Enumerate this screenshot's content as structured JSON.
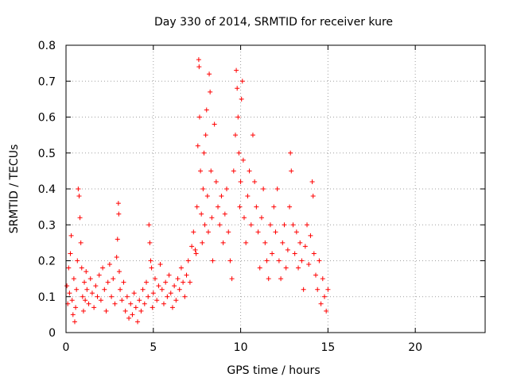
{
  "chart_data": {
    "type": "scatter",
    "title": "Day 330 of 2014, SRMTID for receiver kure",
    "xlabel": "GPS time / hours",
    "ylabel": "SRMTID / TECUs",
    "xlim": [
      0,
      24
    ],
    "ylim": [
      0,
      0.8
    ],
    "xticks": [
      0,
      5,
      10,
      15,
      20
    ],
    "xtick_labels": [
      "0",
      "5",
      "10",
      "15",
      "20"
    ],
    "yticks": [
      0,
      0.1,
      0.2,
      0.3,
      0.4,
      0.5,
      0.6,
      0.7,
      0.8
    ],
    "ytick_labels": [
      "0",
      "0.1",
      "0.2",
      "0.3",
      "0.4",
      "0.5",
      "0.6",
      "0.7",
      "0.8"
    ],
    "grid": true,
    "marker": "plus",
    "color": "#ff0000",
    "series": [
      {
        "name": "SRMTID",
        "points": [
          [
            0.05,
            0.13
          ],
          [
            0.1,
            0.08
          ],
          [
            0.15,
            0.18
          ],
          [
            0.2,
            0.11
          ],
          [
            0.25,
            0.22
          ],
          [
            0.3,
            0.27
          ],
          [
            0.35,
            0.09
          ],
          [
            0.4,
            0.05
          ],
          [
            0.45,
            0.15
          ],
          [
            0.5,
            0.03
          ],
          [
            0.55,
            0.07
          ],
          [
            0.6,
            0.12
          ],
          [
            0.65,
            0.2
          ],
          [
            0.7,
            0.4
          ],
          [
            0.75,
            0.38
          ],
          [
            0.8,
            0.32
          ],
          [
            0.85,
            0.25
          ],
          [
            0.9,
            0.18
          ],
          [
            0.95,
            0.1
          ],
          [
            1.0,
            0.06
          ],
          [
            1.05,
            0.14
          ],
          [
            1.1,
            0.09
          ],
          [
            1.15,
            0.17
          ],
          [
            1.2,
            0.12
          ],
          [
            1.3,
            0.08
          ],
          [
            1.4,
            0.15
          ],
          [
            1.5,
            0.11
          ],
          [
            1.6,
            0.07
          ],
          [
            1.7,
            0.13
          ],
          [
            1.8,
            0.1
          ],
          [
            1.9,
            0.16
          ],
          [
            2.0,
            0.09
          ],
          [
            2.1,
            0.18
          ],
          [
            2.2,
            0.12
          ],
          [
            2.3,
            0.06
          ],
          [
            2.4,
            0.14
          ],
          [
            2.5,
            0.19
          ],
          [
            2.6,
            0.1
          ],
          [
            2.7,
            0.15
          ],
          [
            2.8,
            0.08
          ],
          [
            2.9,
            0.21
          ],
          [
            2.95,
            0.26
          ],
          [
            3.0,
            0.36
          ],
          [
            3.02,
            0.33
          ],
          [
            3.05,
            0.17
          ],
          [
            3.1,
            0.12
          ],
          [
            3.2,
            0.09
          ],
          [
            3.3,
            0.14
          ],
          [
            3.4,
            0.06
          ],
          [
            3.5,
            0.1
          ],
          [
            3.6,
            0.04
          ],
          [
            3.7,
            0.08
          ],
          [
            3.8,
            0.05
          ],
          [
            3.9,
            0.11
          ],
          [
            4.0,
            0.07
          ],
          [
            4.1,
            0.03
          ],
          [
            4.2,
            0.09
          ],
          [
            4.3,
            0.06
          ],
          [
            4.4,
            0.12
          ],
          [
            4.5,
            0.08
          ],
          [
            4.6,
            0.14
          ],
          [
            4.7,
            0.1
          ],
          [
            4.75,
            0.3
          ],
          [
            4.8,
            0.25
          ],
          [
            4.85,
            0.2
          ],
          [
            4.9,
            0.18
          ],
          [
            4.95,
            0.07
          ],
          [
            5.0,
            0.11
          ],
          [
            5.1,
            0.15
          ],
          [
            5.2,
            0.09
          ],
          [
            5.3,
            0.13
          ],
          [
            5.4,
            0.19
          ],
          [
            5.5,
            0.12
          ],
          [
            5.6,
            0.08
          ],
          [
            5.7,
            0.14
          ],
          [
            5.8,
            0.1
          ],
          [
            5.9,
            0.16
          ],
          [
            6.0,
            0.11
          ],
          [
            6.1,
            0.07
          ],
          [
            6.2,
            0.13
          ],
          [
            6.3,
            0.09
          ],
          [
            6.4,
            0.15
          ],
          [
            6.5,
            0.12
          ],
          [
            6.6,
            0.18
          ],
          [
            6.7,
            0.14
          ],
          [
            6.8,
            0.1
          ],
          [
            6.9,
            0.16
          ],
          [
            7.0,
            0.2
          ],
          [
            7.1,
            0.14
          ],
          [
            7.2,
            0.24
          ],
          [
            7.3,
            0.28
          ],
          [
            7.4,
            0.23
          ],
          [
            7.45,
            0.22
          ],
          [
            7.5,
            0.35
          ],
          [
            7.55,
            0.52
          ],
          [
            7.6,
            0.76
          ],
          [
            7.62,
            0.74
          ],
          [
            7.65,
            0.6
          ],
          [
            7.7,
            0.45
          ],
          [
            7.75,
            0.33
          ],
          [
            7.8,
            0.25
          ],
          [
            7.85,
            0.4
          ],
          [
            7.9,
            0.5
          ],
          [
            7.95,
            0.3
          ],
          [
            8.0,
            0.55
          ],
          [
            8.05,
            0.62
          ],
          [
            8.1,
            0.38
          ],
          [
            8.15,
            0.28
          ],
          [
            8.2,
            0.72
          ],
          [
            8.25,
            0.67
          ],
          [
            8.3,
            0.45
          ],
          [
            8.35,
            0.32
          ],
          [
            8.4,
            0.2
          ],
          [
            8.5,
            0.58
          ],
          [
            8.6,
            0.42
          ],
          [
            8.7,
            0.35
          ],
          [
            8.8,
            0.3
          ],
          [
            8.9,
            0.38
          ],
          [
            9.0,
            0.25
          ],
          [
            9.1,
            0.33
          ],
          [
            9.2,
            0.4
          ],
          [
            9.3,
            0.28
          ],
          [
            9.4,
            0.2
          ],
          [
            9.5,
            0.15
          ],
          [
            9.6,
            0.45
          ],
          [
            9.7,
            0.55
          ],
          [
            9.75,
            0.73
          ],
          [
            9.8,
            0.68
          ],
          [
            9.85,
            0.6
          ],
          [
            9.9,
            0.5
          ],
          [
            9.95,
            0.35
          ],
          [
            10.0,
            0.42
          ],
          [
            10.05,
            0.65
          ],
          [
            10.1,
            0.7
          ],
          [
            10.15,
            0.48
          ],
          [
            10.2,
            0.32
          ],
          [
            10.3,
            0.25
          ],
          [
            10.4,
            0.38
          ],
          [
            10.5,
            0.45
          ],
          [
            10.6,
            0.3
          ],
          [
            10.7,
            0.55
          ],
          [
            10.8,
            0.42
          ],
          [
            10.9,
            0.35
          ],
          [
            11.0,
            0.28
          ],
          [
            11.1,
            0.18
          ],
          [
            11.2,
            0.32
          ],
          [
            11.3,
            0.4
          ],
          [
            11.4,
            0.25
          ],
          [
            11.5,
            0.2
          ],
          [
            11.6,
            0.15
          ],
          [
            11.7,
            0.3
          ],
          [
            11.8,
            0.22
          ],
          [
            11.9,
            0.35
          ],
          [
            12.0,
            0.28
          ],
          [
            12.1,
            0.4
          ],
          [
            12.2,
            0.2
          ],
          [
            12.3,
            0.15
          ],
          [
            12.4,
            0.25
          ],
          [
            12.5,
            0.3
          ],
          [
            12.6,
            0.18
          ],
          [
            12.7,
            0.23
          ],
          [
            12.8,
            0.35
          ],
          [
            12.85,
            0.5
          ],
          [
            12.9,
            0.45
          ],
          [
            13.0,
            0.3
          ],
          [
            13.1,
            0.22
          ],
          [
            13.2,
            0.28
          ],
          [
            13.3,
            0.18
          ],
          [
            13.4,
            0.25
          ],
          [
            13.5,
            0.2
          ],
          [
            13.6,
            0.12
          ],
          [
            13.7,
            0.24
          ],
          [
            13.8,
            0.3
          ],
          [
            13.9,
            0.19
          ],
          [
            14.0,
            0.27
          ],
          [
            14.1,
            0.42
          ],
          [
            14.15,
            0.38
          ],
          [
            14.2,
            0.22
          ],
          [
            14.3,
            0.16
          ],
          [
            14.4,
            0.12
          ],
          [
            14.5,
            0.2
          ],
          [
            14.6,
            0.08
          ],
          [
            14.7,
            0.15
          ],
          [
            14.8,
            0.1
          ],
          [
            14.9,
            0.06
          ],
          [
            15.0,
            0.12
          ]
        ]
      }
    ]
  }
}
